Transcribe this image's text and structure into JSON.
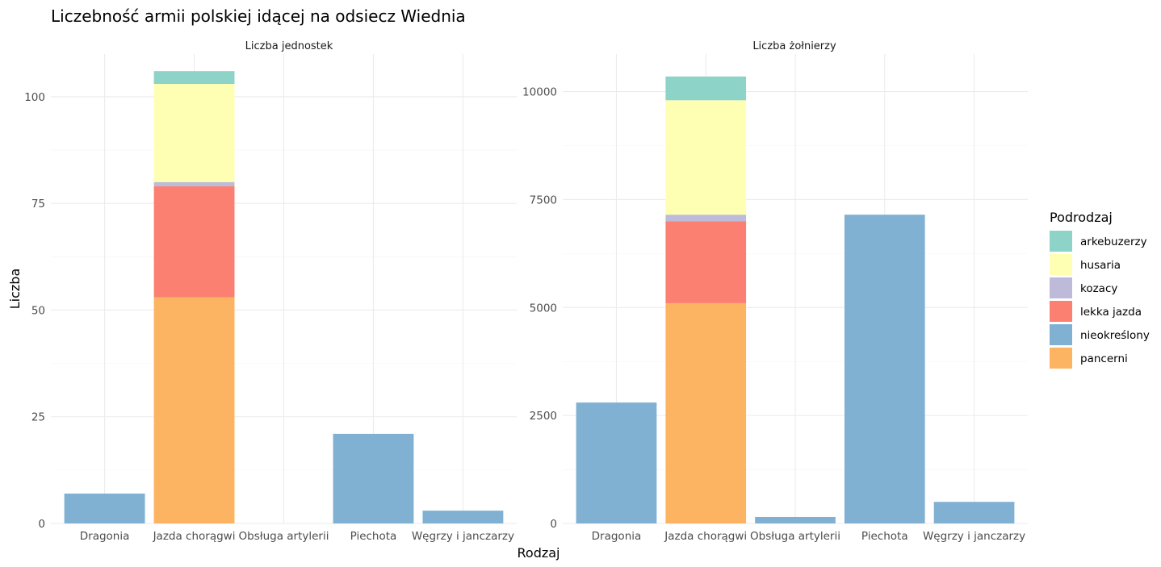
{
  "title": "Liczebność armii polskiej idącej na odsiecz Wiednia",
  "xlabel": "Rodzaj",
  "ylabel": "Liczba",
  "legend": {
    "title": "Podrodzaj",
    "position": "right",
    "items": [
      {
        "label": "arkebuzerzy",
        "color": "#8DD3C7"
      },
      {
        "label": "husaria",
        "color": "#FFFFB3"
      },
      {
        "label": "kozacy",
        "color": "#BEBADA"
      },
      {
        "label": "lekka jazda",
        "color": "#FB8072"
      },
      {
        "label": "nieokreślony",
        "color": "#80B1D3"
      },
      {
        "label": "pancerni",
        "color": "#FDB462"
      }
    ]
  },
  "chart_data": [
    {
      "type": "bar",
      "stacked": true,
      "title": "Liczba jednostek",
      "categories": [
        "Dragonia",
        "Jazda chorągwi",
        "Obsługa artylerii",
        "Piechota",
        "Węgrzy i janczarzy"
      ],
      "ylim": [
        0,
        110
      ],
      "yticks": [
        0,
        25,
        50,
        75,
        100
      ],
      "grid": true,
      "series": [
        {
          "name": "pancerni",
          "values": [
            0,
            53,
            0,
            0,
            0
          ]
        },
        {
          "name": "nieokreślony",
          "values": [
            7,
            0,
            0,
            21,
            3
          ]
        },
        {
          "name": "lekka jazda",
          "values": [
            0,
            26,
            0,
            0,
            0
          ]
        },
        {
          "name": "kozacy",
          "values": [
            0,
            1,
            0,
            0,
            0
          ]
        },
        {
          "name": "husaria",
          "values": [
            0,
            23,
            0,
            0,
            0
          ]
        },
        {
          "name": "arkebuzerzy",
          "values": [
            0,
            3,
            0,
            0,
            0
          ]
        }
      ]
    },
    {
      "type": "bar",
      "stacked": true,
      "title": "Liczba żołnierzy",
      "categories": [
        "Dragonia",
        "Jazda chorągwi",
        "Obsługa artylerii",
        "Piechota",
        "Węgrzy i janczarzy"
      ],
      "ylim": [
        0,
        10870
      ],
      "yticks": [
        0,
        2500,
        5000,
        7500,
        10000
      ],
      "grid": true,
      "series": [
        {
          "name": "pancerni",
          "values": [
            0,
            5100,
            0,
            0,
            0
          ]
        },
        {
          "name": "nieokreślony",
          "values": [
            2800,
            0,
            150,
            7150,
            500
          ]
        },
        {
          "name": "lekka jazda",
          "values": [
            0,
            1900,
            0,
            0,
            0
          ]
        },
        {
          "name": "kozacy",
          "values": [
            0,
            150,
            0,
            0,
            0
          ]
        },
        {
          "name": "husaria",
          "values": [
            0,
            2650,
            0,
            0,
            0
          ]
        },
        {
          "name": "arkebuzerzy",
          "values": [
            0,
            550,
            0,
            0,
            0
          ]
        }
      ]
    }
  ]
}
